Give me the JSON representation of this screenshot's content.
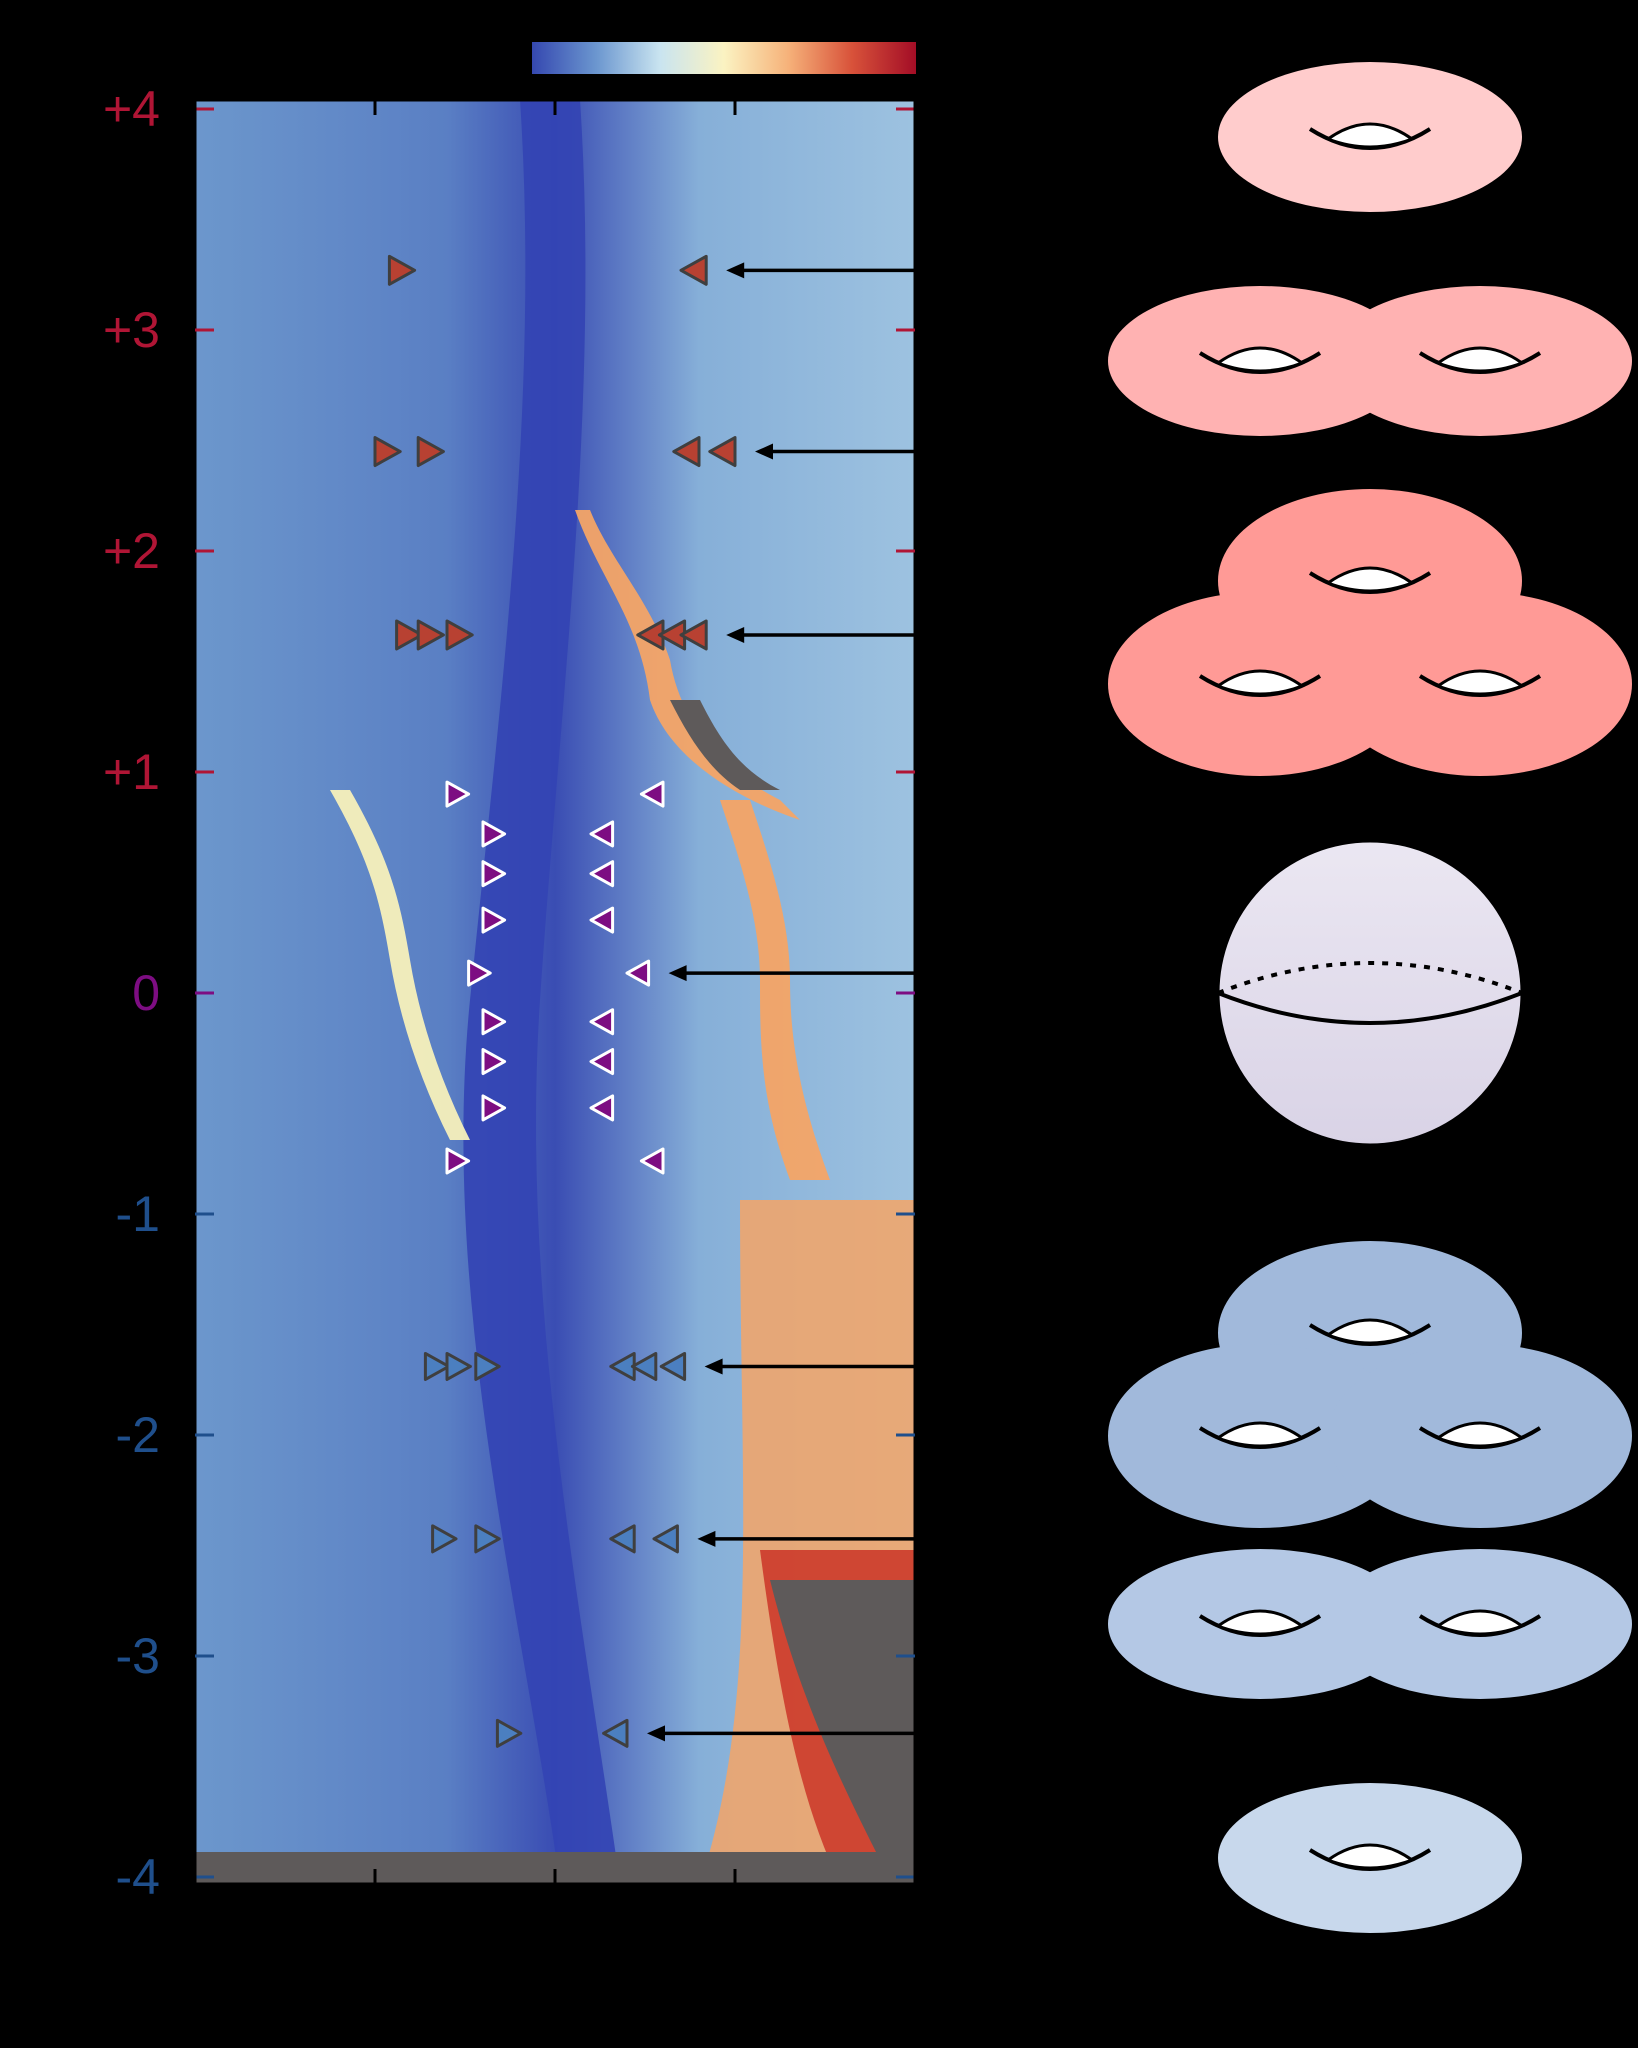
{
  "colors": {
    "positive": "#b01535",
    "zero": "#7d0d82",
    "negative": "#1f4f8c",
    "map_dark": "#3344b4",
    "map_mid": "#8fb5dc",
    "map_light": "#dceef4",
    "map_yellow": "#f7f0bb",
    "map_orange": "#f4a466",
    "map_red": "#cc3b2b",
    "masked": "#5e5a5a",
    "colorbar": [
      "#3548b0",
      "#6b96cf",
      "#c9e4f0",
      "#fbf3c2",
      "#f6b27a",
      "#d8523a",
      "#a30d26"
    ]
  },
  "chart_data": {
    "type": "heatmap",
    "title": "",
    "xlabel": "",
    "ylabel": "",
    "ylim": [
      -4,
      4
    ],
    "y_ticks": [
      {
        "value": 4,
        "label": "+4",
        "sign": "positive"
      },
      {
        "value": 3,
        "label": "+3",
        "sign": "positive"
      },
      {
        "value": 2,
        "label": "+2",
        "sign": "positive"
      },
      {
        "value": 1,
        "label": "+1",
        "sign": "positive"
      },
      {
        "value": 0,
        "label": "0",
        "sign": "zero"
      },
      {
        "value": -1,
        "label": "-1",
        "sign": "negative"
      },
      {
        "value": -2,
        "label": "-2",
        "sign": "negative"
      },
      {
        "value": -3,
        "label": "-3",
        "sign": "negative"
      },
      {
        "value": -4,
        "label": "-4",
        "sign": "negative"
      }
    ],
    "x_tick_count": 5,
    "marked_rows": [
      {
        "y": 3.27,
        "count": 1,
        "sign": "positive",
        "pairs": [
          [
            0.27,
            0.71
          ]
        ]
      },
      {
        "y": 2.45,
        "count": 2,
        "sign": "positive",
        "pairs": [
          [
            0.25,
            0.7
          ],
          [
            0.31,
            0.75
          ]
        ]
      },
      {
        "y": 1.62,
        "count": 3,
        "sign": "positive",
        "pairs": [
          [
            0.28,
            0.65
          ],
          [
            0.31,
            0.68
          ],
          [
            0.35,
            0.71
          ]
        ]
      },
      {
        "y": 0.09,
        "count": 0,
        "sign": "zero",
        "pairs": [
          [
            0.38,
            0.63
          ]
        ]
      },
      {
        "y": -1.69,
        "count": 3,
        "sign": "negative",
        "pairs": [
          [
            0.32,
            0.61
          ],
          [
            0.35,
            0.64
          ],
          [
            0.39,
            0.68
          ]
        ]
      },
      {
        "y": -2.47,
        "count": 2,
        "sign": "negative",
        "pairs": [
          [
            0.33,
            0.61
          ],
          [
            0.39,
            0.67
          ]
        ]
      },
      {
        "y": -3.35,
        "count": 1,
        "sign": "negative",
        "pairs": [
          [
            0.42,
            0.6
          ]
        ]
      }
    ],
    "intermediate_markers": [
      {
        "y": 0.9,
        "pair": [
          0.35,
          0.65
        ]
      },
      {
        "y": 0.72,
        "pair": [
          0.4,
          0.58
        ]
      },
      {
        "y": 0.54,
        "pair": [
          0.4,
          0.58
        ]
      },
      {
        "y": 0.33,
        "pair": [
          0.4,
          0.58
        ]
      },
      {
        "y": -0.13,
        "pair": [
          0.4,
          0.58
        ]
      },
      {
        "y": -0.31,
        "pair": [
          0.4,
          0.58
        ]
      },
      {
        "y": -0.52,
        "pair": [
          0.4,
          0.58
        ]
      },
      {
        "y": -0.76,
        "pair": [
          0.35,
          0.65
        ]
      }
    ],
    "surfaces": [
      {
        "genus": 1,
        "sign": "positive",
        "fill": "#ffcccc"
      },
      {
        "genus": 2,
        "sign": "positive",
        "fill": "#ffb2b2"
      },
      {
        "genus": 3,
        "sign": "positive",
        "fill": "#ff9a96"
      },
      {
        "genus": 0,
        "sign": "zero",
        "fill": "#e4dfed"
      },
      {
        "genus": 3,
        "sign": "negative",
        "fill": "#a1b9db"
      },
      {
        "genus": 2,
        "sign": "negative",
        "fill": "#b4c8e5"
      },
      {
        "genus": 1,
        "sign": "negative",
        "fill": "#c8d8ec"
      }
    ]
  }
}
